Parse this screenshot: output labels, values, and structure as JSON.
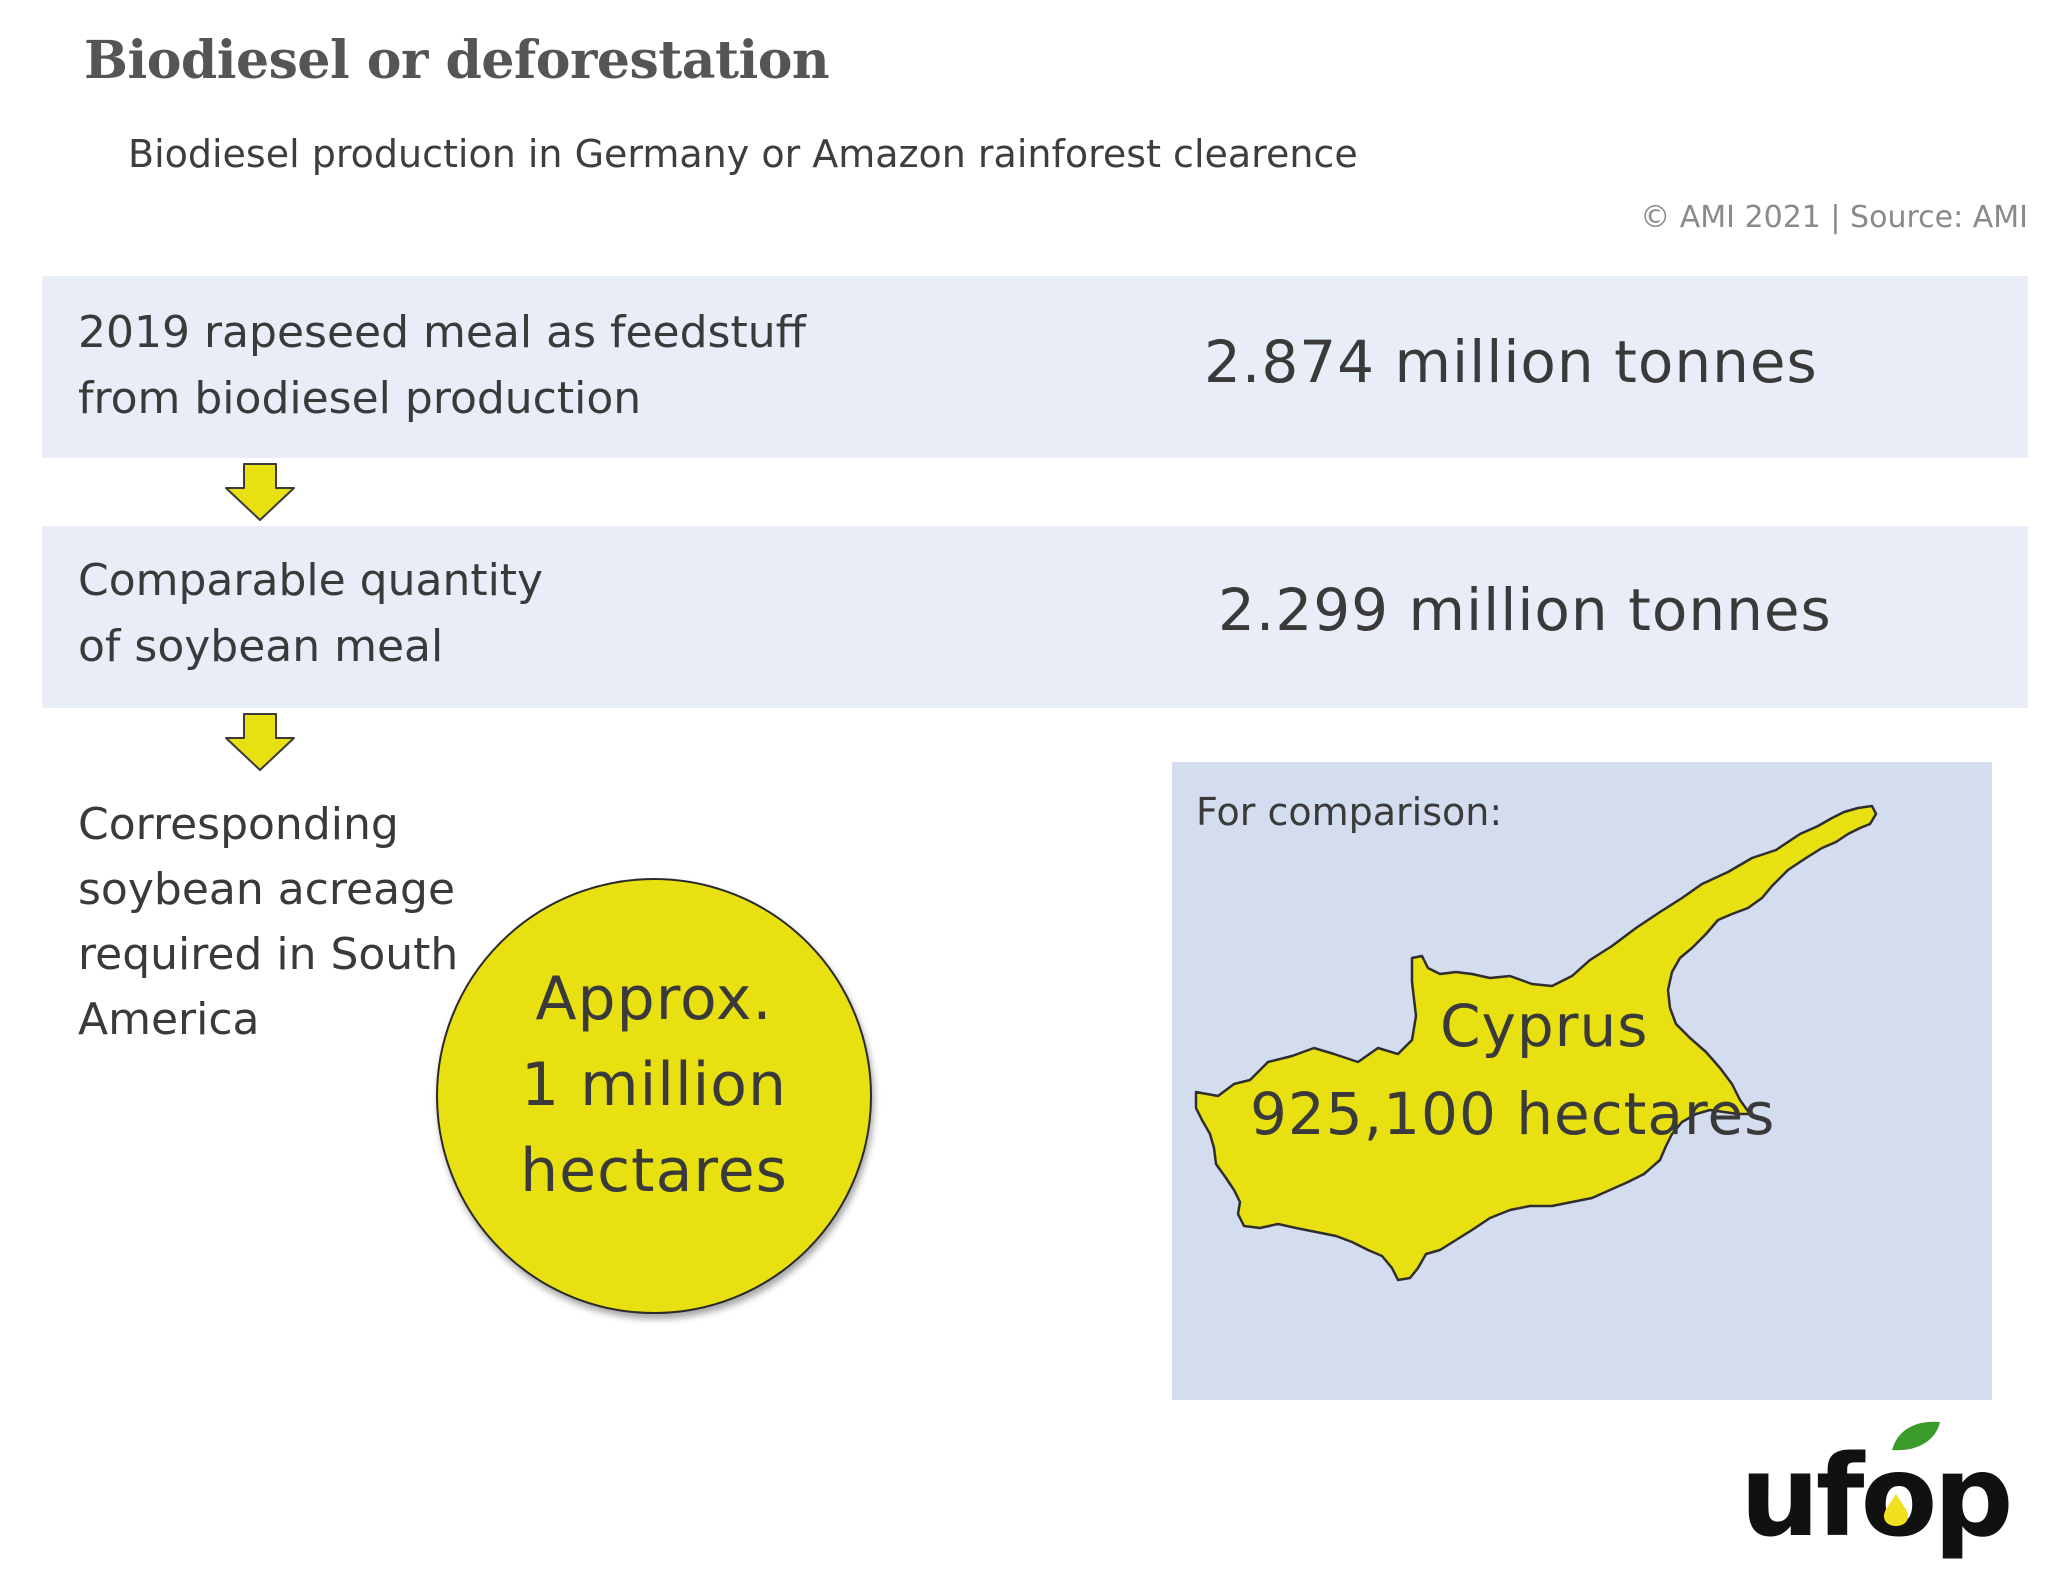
{
  "header": {
    "title": "Biodiesel or deforestation",
    "subtitle": "Biodiesel production in Germany or Amazon rainforest clearence",
    "credit": "© AMI 2021 | Source: AMI"
  },
  "rows": [
    {
      "label_lines": [
        "2019 rapeseed meal as feedstuff",
        "from biodiesel production"
      ],
      "value": "2.874 million tonnes"
    },
    {
      "label_lines": [
        "Comparable quantity",
        "of soybean meal"
      ],
      "value": "2.299 million tonnes"
    }
  ],
  "acreage": {
    "label_lines": [
      "Corresponding",
      "soybean acreage",
      "required in South",
      "America"
    ],
    "circle_lines": [
      "Approx.",
      "1 million",
      "hectares"
    ]
  },
  "comparison": {
    "heading": "For comparison:",
    "country": "Cyprus",
    "area": "925,100 hectares"
  },
  "logo": {
    "text": "ufop"
  },
  "colors": {
    "band": "#e9edf7",
    "map_panel": "#d4dcef",
    "accent_yellow": "#e8e010",
    "leaf_green": "#3a9a2a"
  },
  "icons": {
    "flow_arrow": "down-arrow-icon",
    "map_shape": "cyprus-map-icon"
  }
}
